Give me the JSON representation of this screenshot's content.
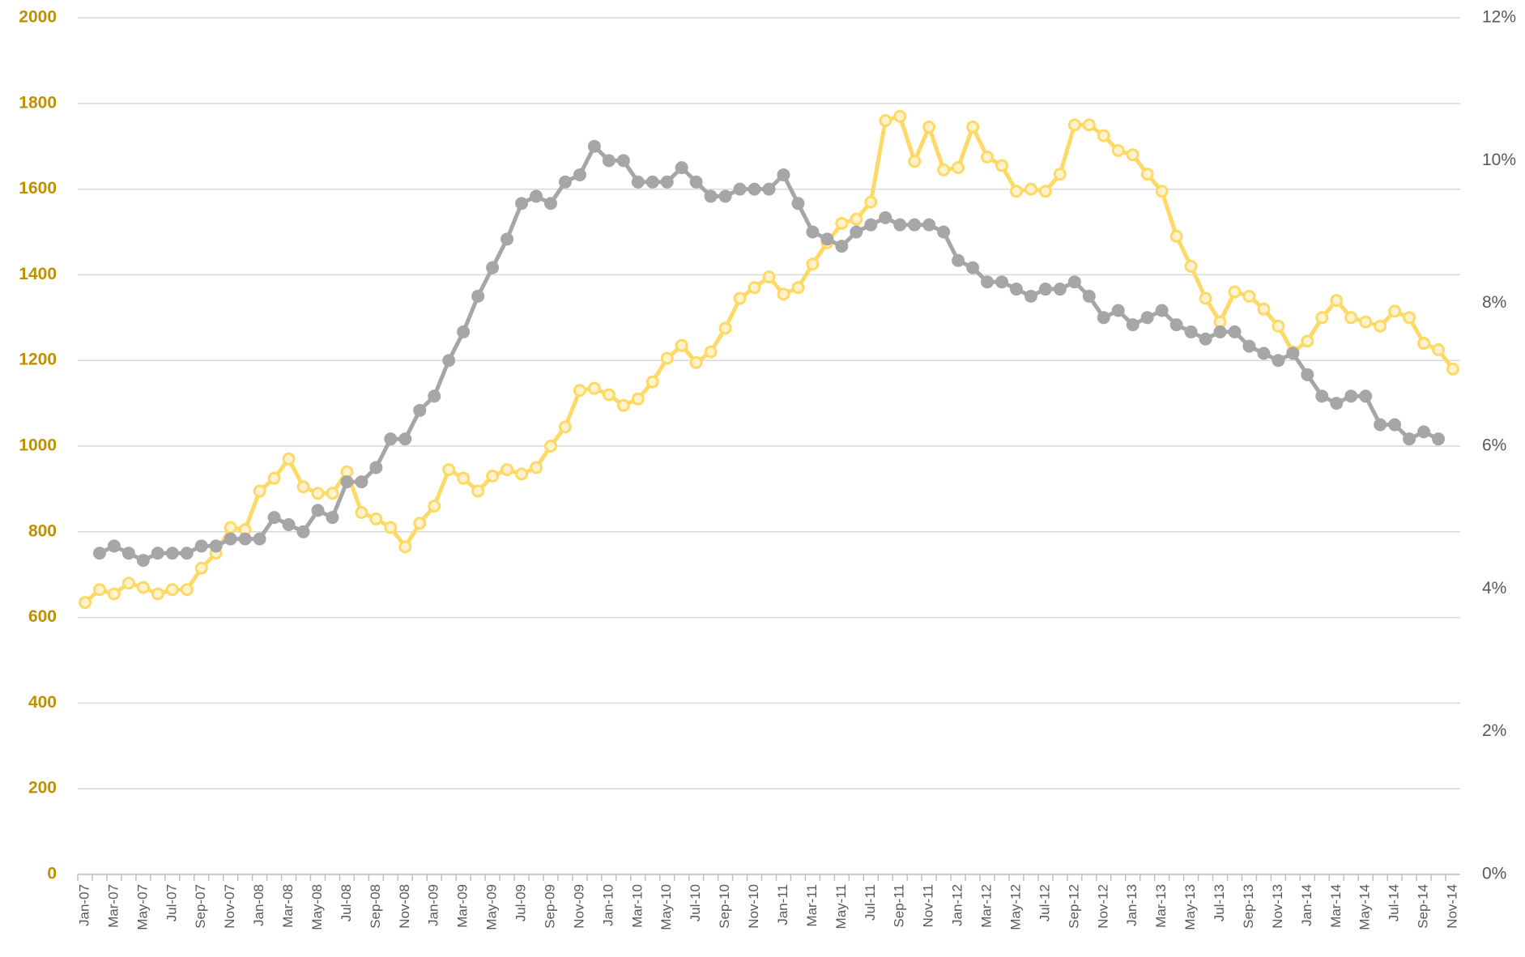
{
  "chart_data": {
    "type": "line",
    "categories": [
      "Jan-07",
      null,
      "Mar-07",
      null,
      "May-07",
      null,
      "Jul-07",
      null,
      "Sep-07",
      null,
      "Nov-07",
      null,
      "Jan-08",
      null,
      "Mar-08",
      null,
      "May-08",
      null,
      "Jul-08",
      null,
      "Sep-08",
      null,
      "Nov-08",
      null,
      "Jan-09",
      null,
      "Mar-09",
      null,
      "May-09",
      null,
      "Jul-09",
      null,
      "Sep-09",
      null,
      "Nov-09",
      null,
      "Jan-10",
      null,
      "Mar-10",
      null,
      "May-10",
      null,
      "Jul-10",
      null,
      "Sep-10",
      null,
      "Nov-10",
      null,
      "Jan-11",
      null,
      "Mar-11",
      null,
      "May-11",
      null,
      "Jul-11",
      null,
      "Sep-11",
      null,
      "Nov-11",
      null,
      "Jan-12",
      null,
      "Mar-12",
      null,
      "May-12",
      null,
      "Jul-12",
      null,
      "Sep-12",
      null,
      "Nov-12",
      null,
      "Jan-13",
      null,
      "Mar-13",
      null,
      "May-13",
      null,
      "Jul-13",
      null,
      "Sep-13",
      null,
      "Nov-13",
      null,
      "Jan-14",
      null,
      "Mar-14",
      null,
      "May-14",
      null,
      "Jul-14",
      null,
      "Sep-14",
      null,
      "Nov-14"
    ],
    "series": [
      {
        "color": "#ffd966",
        "axis": "y",
        "values": [
          635,
          665,
          655,
          680,
          670,
          655,
          665,
          665,
          715,
          750,
          810,
          805,
          895,
          925,
          970,
          905,
          890,
          890,
          940,
          845,
          830,
          810,
          765,
          820,
          860,
          945,
          925,
          895,
          930,
          945,
          935,
          950,
          1000,
          1045,
          1130,
          1135,
          1120,
          1095,
          1110,
          1150,
          1205,
          1235,
          1195,
          1220,
          1275,
          1345,
          1370,
          1395,
          1355,
          1370,
          1425,
          1475,
          1520,
          1530,
          1570,
          1760,
          1770,
          1665,
          1745,
          1645,
          1650,
          1745,
          1675,
          1655,
          1595,
          1600,
          1595,
          1635,
          1750,
          1750,
          1725,
          1690,
          1680,
          1635,
          1595,
          1490,
          1420,
          1345,
          1290,
          1360,
          1350,
          1320,
          1280,
          1220,
          1245,
          1300,
          1340,
          1300,
          1290,
          1280,
          1315,
          1300,
          1240,
          1225,
          1180
        ]
      },
      {
        "color": "#a6a6a6",
        "axis": "y2",
        "values": [
          null,
          4.5,
          4.6,
          4.5,
          4.4,
          4.5,
          4.5,
          4.5,
          4.6,
          4.6,
          4.7,
          4.7,
          4.7,
          5.0,
          4.9,
          4.8,
          5.1,
          5.0,
          5.5,
          5.5,
          5.7,
          6.1,
          6.1,
          6.5,
          6.7,
          7.2,
          7.6,
          8.1,
          8.5,
          8.9,
          9.4,
          9.5,
          9.4,
          9.7,
          9.8,
          10.2,
          10.0,
          10.0,
          9.7,
          9.7,
          9.7,
          9.9,
          9.7,
          9.5,
          9.5,
          9.6,
          9.6,
          9.6,
          9.8,
          9.4,
          9.0,
          8.9,
          8.8,
          9.0,
          9.1,
          9.2,
          9.1,
          9.1,
          9.1,
          9.0,
          8.6,
          8.5,
          8.3,
          8.3,
          8.2,
          8.1,
          8.2,
          8.2,
          8.3,
          8.1,
          7.8,
          7.9,
          7.7,
          7.8,
          7.9,
          7.7,
          7.6,
          7.5,
          7.6,
          7.6,
          7.4,
          7.3,
          7.2,
          7.3,
          7.0,
          6.7,
          6.6,
          6.7,
          6.7,
          6.3,
          6.3,
          6.1,
          6.2,
          6.1,
          null
        ]
      }
    ],
    "ylim": [
      0,
      2000
    ],
    "yticks": [
      0,
      200,
      400,
      600,
      800,
      1000,
      1200,
      1400,
      1600,
      1800,
      2000
    ],
    "y2lim": [
      0,
      12
    ],
    "y2ticks": [
      {
        "value": 0,
        "label": "0%"
      },
      {
        "value": 2,
        "label": "2%"
      },
      {
        "value": 4,
        "label": "4%"
      },
      {
        "value": 6,
        "label": "6%"
      },
      {
        "value": 8,
        "label": "8%"
      },
      {
        "value": 10,
        "label": "10%"
      },
      {
        "value": 12,
        "label": "12%"
      }
    ],
    "grid": true
  }
}
